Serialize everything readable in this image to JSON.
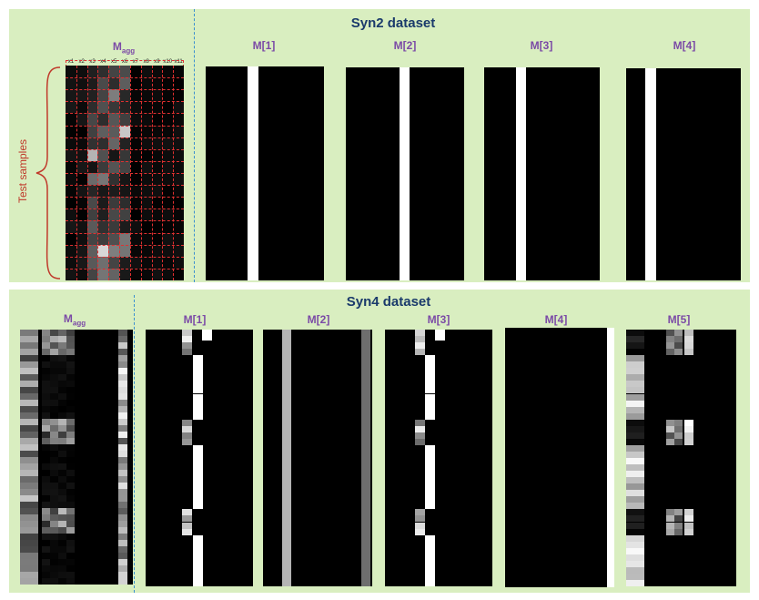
{
  "syn2": {
    "title": "Syn2 dataset",
    "y_label": "Test samples",
    "magg_label": "M",
    "magg_sub": "agg",
    "x_headers": [
      "x1",
      "x2",
      "x3",
      "x4",
      "x5",
      "x6",
      "x7",
      "x8",
      "x9",
      "x10",
      "x11"
    ],
    "masks": [
      {
        "label": "M[1]"
      },
      {
        "label": "M[2]"
      },
      {
        "label": "M[3]"
      },
      {
        "label": "M[4]"
      }
    ]
  },
  "syn4": {
    "title": "Syn4 dataset",
    "magg_label": "M",
    "magg_sub": "agg",
    "masks": [
      {
        "label": "M[1]"
      },
      {
        "label": "M[2]"
      },
      {
        "label": "M[3]"
      },
      {
        "label": "M[4]"
      },
      {
        "label": "M[5]"
      }
    ]
  },
  "colors": {
    "panel_bg": "#d9eec0",
    "title": "#1a3a6b",
    "mask_label": "#7b4aa6",
    "annotation": "#c0392b",
    "divider": "#3a8fd0"
  }
}
